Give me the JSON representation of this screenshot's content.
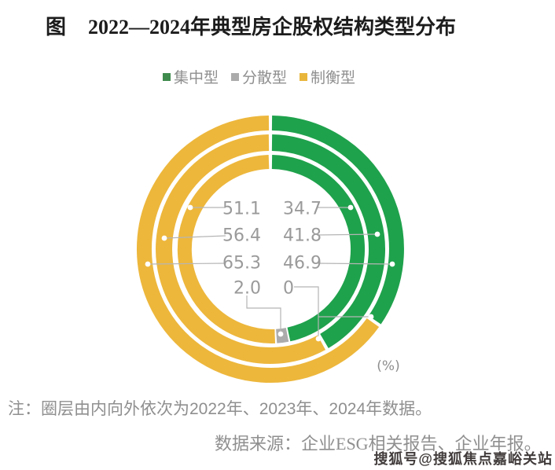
{
  "title": {
    "prefix": "图",
    "text": "2022—2024年典型房企股权结构类型分布"
  },
  "legend": [
    {
      "label": "集中型",
      "color": "#3f8b4d"
    },
    {
      "label": "分散型",
      "color": "#ababab"
    },
    {
      "label": "制衡型",
      "color": "#e9b63c"
    }
  ],
  "chart_data": {
    "type": "donut",
    "unit_label": "(%)",
    "series_labels": [
      "集中型",
      "分散型",
      "制衡型"
    ],
    "colors": {
      "concentrated": "#1fa24c",
      "dispersed": "#ababab",
      "balanced": "#edb73c"
    },
    "rings_inner_to_outer": [
      {
        "year": "2022",
        "position": "inner",
        "concentrated": 46.9,
        "dispersed": 2.0,
        "balanced": 51.1
      },
      {
        "year": "2023",
        "position": "middle",
        "concentrated": 41.8,
        "dispersed": 0,
        "balanced": 56.4
      },
      {
        "year": "2024",
        "position": "outer",
        "concentrated": 34.7,
        "dispersed": 0,
        "balanced": 65.3
      }
    ],
    "callout_rows": [
      {
        "left": "51.1",
        "right": "34.7"
      },
      {
        "left": "56.4",
        "right": "41.8"
      },
      {
        "left": "65.3",
        "right": "46.9"
      },
      {
        "left": "2.0",
        "right": "0"
      }
    ]
  },
  "notes": {
    "ring_order_note": "注：圈层由内向外依次为2022年、2023年、2024年数据。",
    "source": "数据来源：企业ESG相关报告、企业年报。"
  },
  "watermark": "搜狐号@搜狐焦点嘉峪关站"
}
